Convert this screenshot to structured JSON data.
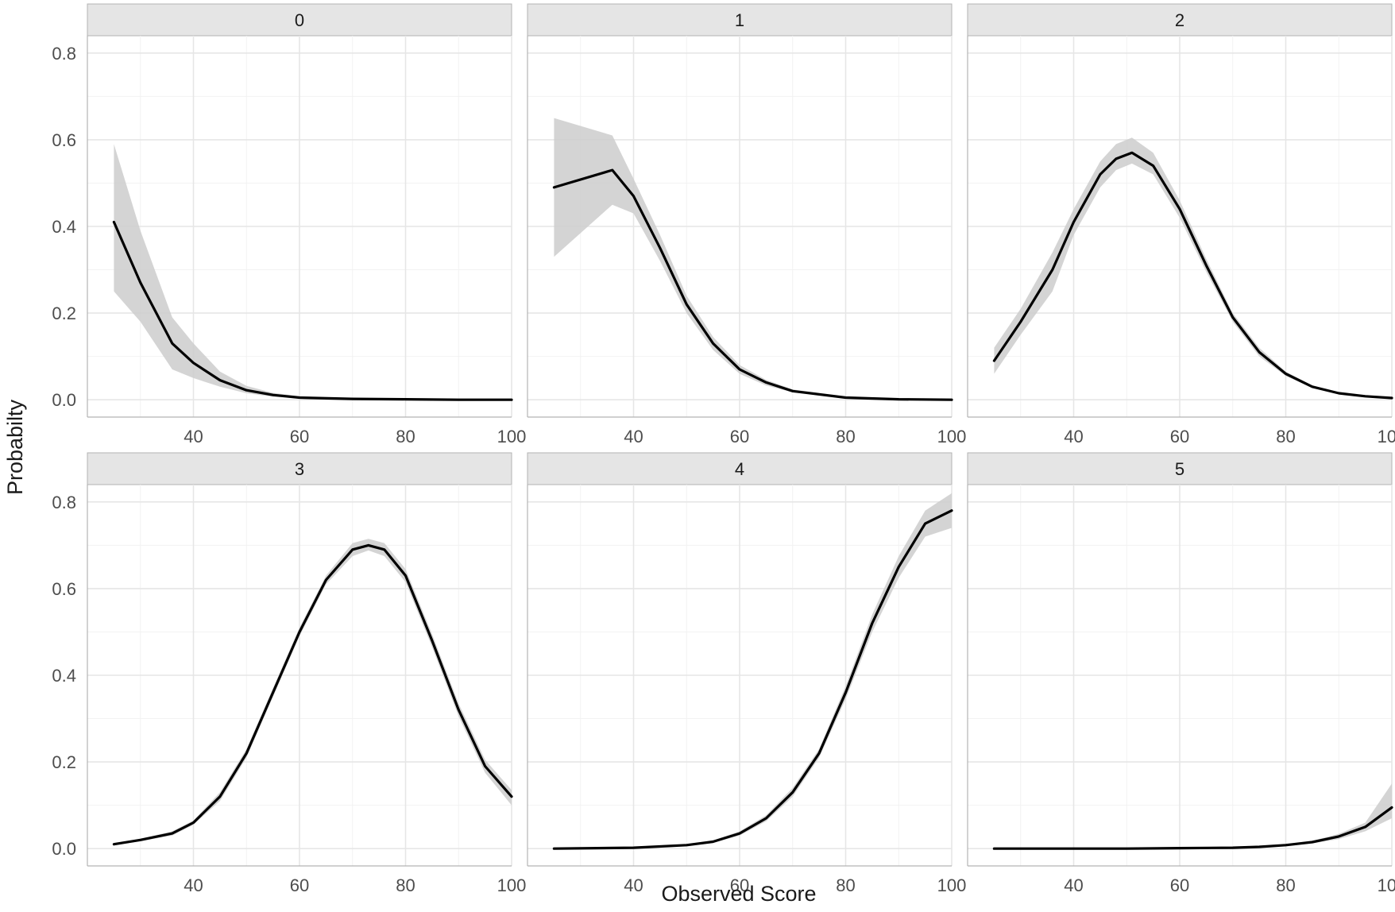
{
  "chart_data": {
    "type": "line",
    "layout": "facet-grid 2x3",
    "xlabel": "Observed Score",
    "ylabel": "Probabilty",
    "xlim": [
      20,
      100
    ],
    "ylim": [
      -0.04,
      0.84
    ],
    "x_ticks": [
      40,
      60,
      80,
      100
    ],
    "x_tick_labels": [
      "40",
      "60",
      "80",
      "100"
    ],
    "y_ticks": [
      0.0,
      0.2,
      0.4,
      0.6,
      0.8
    ],
    "y_tick_labels": [
      "0.0",
      "0.2",
      "0.4",
      "0.6",
      "0.8"
    ],
    "grid": true,
    "legend": "none",
    "line_color": "#000000",
    "band_color": "#cccccc",
    "strip_color": "#e5e5e5",
    "facets": [
      {
        "label": "0",
        "x": [
          25,
          30,
          36,
          40,
          45,
          50,
          55,
          60,
          70,
          80,
          90,
          100
        ],
        "y": [
          0.41,
          0.27,
          0.13,
          0.085,
          0.045,
          0.022,
          0.011,
          0.005,
          0.002,
          0.001,
          0.0,
          0.0
        ],
        "lower": [
          0.25,
          0.18,
          0.07,
          0.05,
          0.03,
          0.015,
          0.007,
          0.003,
          0.001,
          0.0,
          0.0,
          0.0
        ],
        "upper": [
          0.59,
          0.39,
          0.19,
          0.13,
          0.065,
          0.032,
          0.016,
          0.008,
          0.003,
          0.001,
          0.0,
          0.0
        ]
      },
      {
        "label": "1",
        "x": [
          25,
          36,
          40,
          45,
          50,
          55,
          60,
          65,
          70,
          80,
          90,
          100
        ],
        "y": [
          0.49,
          0.53,
          0.47,
          0.35,
          0.22,
          0.13,
          0.07,
          0.04,
          0.02,
          0.005,
          0.001,
          0.0
        ],
        "lower": [
          0.33,
          0.45,
          0.43,
          0.32,
          0.2,
          0.115,
          0.06,
          0.033,
          0.017,
          0.004,
          0.001,
          0.0
        ],
        "upper": [
          0.65,
          0.61,
          0.51,
          0.38,
          0.24,
          0.145,
          0.08,
          0.046,
          0.024,
          0.006,
          0.001,
          0.0
        ]
      },
      {
        "label": "2",
        "x": [
          25,
          30,
          36,
          40,
          45,
          48,
          51,
          55,
          60,
          65,
          70,
          75,
          80,
          85,
          90,
          95,
          100
        ],
        "y": [
          0.09,
          0.18,
          0.3,
          0.41,
          0.52,
          0.556,
          0.57,
          0.54,
          0.44,
          0.31,
          0.19,
          0.11,
          0.06,
          0.03,
          0.015,
          0.008,
          0.004
        ],
        "lower": [
          0.06,
          0.15,
          0.25,
          0.38,
          0.49,
          0.53,
          0.545,
          0.52,
          0.42,
          0.295,
          0.18,
          0.1,
          0.055,
          0.027,
          0.013,
          0.007,
          0.003
        ],
        "upper": [
          0.12,
          0.21,
          0.34,
          0.44,
          0.55,
          0.59,
          0.605,
          0.57,
          0.46,
          0.325,
          0.2,
          0.12,
          0.065,
          0.033,
          0.017,
          0.009,
          0.005
        ]
      },
      {
        "label": "3",
        "x": [
          25,
          30,
          36,
          40,
          45,
          50,
          55,
          60,
          65,
          70,
          73,
          76,
          80,
          85,
          90,
          95,
          100
        ],
        "y": [
          0.01,
          0.02,
          0.035,
          0.06,
          0.12,
          0.22,
          0.36,
          0.5,
          0.62,
          0.69,
          0.7,
          0.69,
          0.63,
          0.48,
          0.32,
          0.19,
          0.12
        ],
        "lower": [
          0.008,
          0.017,
          0.03,
          0.055,
          0.11,
          0.21,
          0.35,
          0.49,
          0.61,
          0.675,
          0.688,
          0.675,
          0.615,
          0.465,
          0.305,
          0.175,
          0.1
        ],
        "upper": [
          0.012,
          0.023,
          0.04,
          0.065,
          0.13,
          0.23,
          0.37,
          0.51,
          0.63,
          0.705,
          0.715,
          0.705,
          0.645,
          0.495,
          0.335,
          0.205,
          0.135
        ]
      },
      {
        "label": "4",
        "x": [
          25,
          40,
          50,
          55,
          60,
          65,
          70,
          75,
          80,
          85,
          90,
          95,
          100
        ],
        "y": [
          0.0,
          0.002,
          0.008,
          0.016,
          0.035,
          0.07,
          0.13,
          0.22,
          0.36,
          0.52,
          0.65,
          0.75,
          0.78
        ],
        "lower": [
          0.0,
          0.001,
          0.006,
          0.013,
          0.03,
          0.063,
          0.12,
          0.21,
          0.345,
          0.5,
          0.625,
          0.72,
          0.74
        ],
        "upper": [
          0.0,
          0.003,
          0.01,
          0.019,
          0.04,
          0.077,
          0.14,
          0.23,
          0.375,
          0.54,
          0.675,
          0.78,
          0.82
        ]
      },
      {
        "label": "5",
        "x": [
          25,
          50,
          60,
          70,
          75,
          80,
          85,
          90,
          95,
          100
        ],
        "y": [
          0.0,
          0.0,
          0.001,
          0.002,
          0.004,
          0.008,
          0.015,
          0.028,
          0.05,
          0.095
        ],
        "lower": [
          0.0,
          0.0,
          0.0,
          0.001,
          0.003,
          0.006,
          0.012,
          0.022,
          0.04,
          0.07
        ],
        "upper": [
          0.0,
          0.0,
          0.001,
          0.003,
          0.005,
          0.01,
          0.018,
          0.034,
          0.06,
          0.15
        ]
      }
    ]
  }
}
